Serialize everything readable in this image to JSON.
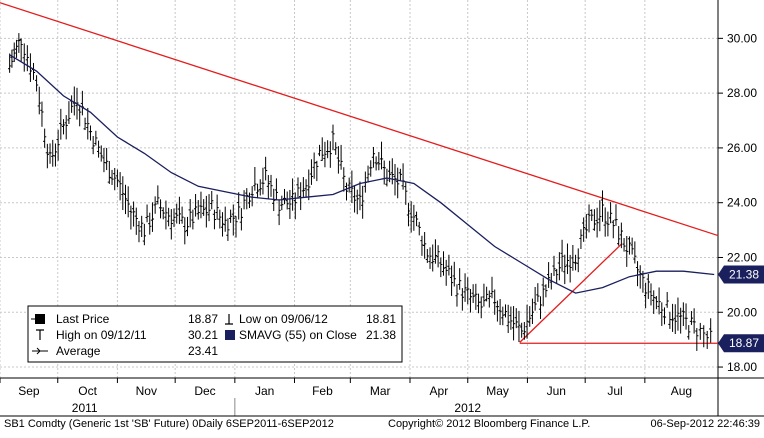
{
  "chart_data": {
    "type": "line",
    "subtype": "ohlc-bar",
    "title": "",
    "xlabel": "",
    "ylabel": "",
    "ylim": [
      17.6,
      31.4
    ],
    "y_ticks": [
      "30.00",
      "28.00",
      "26.00",
      "24.00",
      "22.00",
      "20.00",
      "18.00"
    ],
    "y_tick_values": [
      30,
      28,
      26,
      24,
      22,
      20,
      18
    ],
    "x_tick_labels": [
      "Sep",
      "Oct",
      "Nov",
      "Dec",
      "Jan",
      "Feb",
      "Mar",
      "Apr",
      "May",
      "Jun",
      "Jul",
      "Aug"
    ],
    "x_tick_dates": [
      "2011-09-01",
      "2011-10-01",
      "2011-11-01",
      "2011-12-01",
      "2012-01-01",
      "2012-02-01",
      "2012-03-01",
      "2012-04-01",
      "2012-05-01",
      "2012-06-01",
      "2012-07-01",
      "2012-08-01"
    ],
    "year_labels": [
      {
        "label": "2011",
        "date": "2011-10-15"
      },
      {
        "label": "2012",
        "date": "2012-05-01"
      }
    ],
    "x_range": [
      "2011-09-01",
      "2012-09-08"
    ],
    "grid": true,
    "price_series": {
      "name": "Last Price",
      "dates": [
        "2011-09-06",
        "2011-09-12",
        "2011-09-20",
        "2011-09-27",
        "2011-10-04",
        "2011-10-11",
        "2011-10-18",
        "2011-10-25",
        "2011-11-01",
        "2011-11-08",
        "2011-11-15",
        "2011-11-22",
        "2011-11-29",
        "2011-12-06",
        "2011-12-13",
        "2011-12-20",
        "2011-12-27",
        "2012-01-03",
        "2012-01-10",
        "2012-01-17",
        "2012-01-24",
        "2012-01-31",
        "2012-02-07",
        "2012-02-14",
        "2012-02-21",
        "2012-02-28",
        "2012-03-06",
        "2012-03-13",
        "2012-03-20",
        "2012-03-27",
        "2012-04-03",
        "2012-04-10",
        "2012-04-17",
        "2012-04-24",
        "2012-05-01",
        "2012-05-08",
        "2012-05-15",
        "2012-05-22",
        "2012-05-29",
        "2012-06-05",
        "2012-06-12",
        "2012-06-19",
        "2012-06-26",
        "2012-07-03",
        "2012-07-10",
        "2012-07-17",
        "2012-07-24",
        "2012-07-31",
        "2012-08-07",
        "2012-08-14",
        "2012-08-21",
        "2012-08-28",
        "2012-09-06"
      ],
      "values": [
        29.0,
        30.0,
        28.4,
        25.5,
        26.8,
        27.9,
        26.6,
        25.5,
        24.8,
        23.7,
        23.0,
        23.9,
        23.5,
        23.2,
        23.6,
        23.8,
        23.3,
        23.6,
        24.6,
        24.9,
        24.0,
        24.0,
        24.7,
        25.8,
        26.2,
        24.5,
        24.0,
        25.9,
        25.0,
        24.7,
        23.5,
        22.2,
        21.8,
        21.1,
        20.6,
        20.2,
        20.5,
        19.8,
        19.3,
        20.2,
        21.0,
        21.8,
        22.1,
        23.2,
        23.7,
        23.1,
        22.2,
        21.1,
        20.4,
        20.0,
        19.7,
        19.4,
        18.87
      ]
    },
    "sma_series": {
      "name": "SMAVG (55) on Close",
      "dates": [
        "2011-09-06",
        "2011-09-20",
        "2011-10-04",
        "2011-10-18",
        "2011-11-01",
        "2011-11-15",
        "2011-11-29",
        "2011-12-13",
        "2011-12-27",
        "2012-01-10",
        "2012-01-24",
        "2012-02-07",
        "2012-02-21",
        "2012-03-06",
        "2012-03-20",
        "2012-04-03",
        "2012-04-17",
        "2012-05-01",
        "2012-05-15",
        "2012-05-29",
        "2012-06-12",
        "2012-06-26",
        "2012-07-10",
        "2012-07-24",
        "2012-08-07",
        "2012-08-21",
        "2012-09-06"
      ],
      "values": [
        29.4,
        28.8,
        27.9,
        27.3,
        26.4,
        25.8,
        25.1,
        24.6,
        24.4,
        24.2,
        24.1,
        24.2,
        24.3,
        24.7,
        24.9,
        24.7,
        24.0,
        23.2,
        22.4,
        21.8,
        21.2,
        20.7,
        20.9,
        21.3,
        21.5,
        21.5,
        21.38
      ]
    },
    "annotations": [
      {
        "type": "trendline",
        "color": "#e31d1d",
        "from": {
          "date": "2011-09-01",
          "value": 31.3
        },
        "to": {
          "date": "2012-09-08",
          "value": 22.8
        }
      },
      {
        "type": "trendline",
        "color": "#e31d1d",
        "from": {
          "date": "2012-05-28",
          "value": 18.9
        },
        "to": {
          "date": "2012-07-20",
          "value": 22.5
        }
      },
      {
        "type": "hline",
        "color": "#e31d1d",
        "from": {
          "date": "2012-05-28",
          "value": 18.87
        },
        "to": {
          "date": "2012-09-08",
          "value": 18.87
        }
      }
    ],
    "right_labels": [
      {
        "text": "21.38",
        "value": 21.38,
        "style": "dark"
      },
      {
        "text": "18.87",
        "value": 18.87,
        "style": "dark"
      }
    ],
    "legend": {
      "placement": "bottom-left",
      "rows": [
        {
          "icon": "square-icon",
          "label": "Last Price",
          "value": "18.87",
          "label2": "Low on 09/06/12",
          "value2": "18.81"
        },
        {
          "icon": "high-marker-icon",
          "label": "High on 09/12/11",
          "value": "30.21",
          "label2": "SMAVG (55) on Close",
          "value2": "21.38"
        },
        {
          "icon": "average-line-icon",
          "label": "Average",
          "value": "23.41",
          "label2": "",
          "value2": ""
        }
      ]
    },
    "colors": {
      "price": "#000000",
      "sma": "#1a1f5e",
      "trend": "#e31d1d",
      "grid": "#c8c8c8",
      "label_bg": "#1a1f5e"
    }
  },
  "footer": {
    "left": "SB1 Comdty (Generic 1st 'SB' Future) 0Daily 6SEP2011-6SEP2012",
    "center": "Copyright© 2012 Bloomberg Finance L.P.",
    "right": "06-Sep-2012 22:46:39"
  }
}
